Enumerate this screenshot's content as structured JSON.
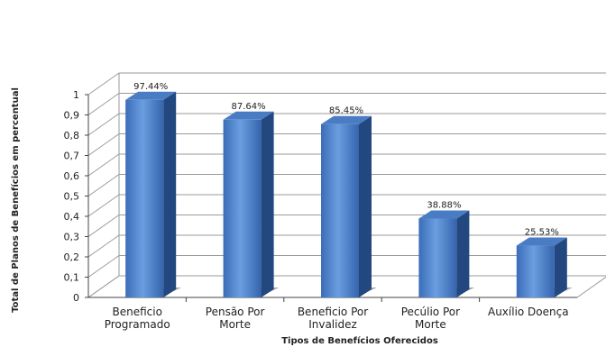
{
  "chart_data": {
    "type": "bar",
    "categories": [
      [
        "Beneficio",
        "Programado"
      ],
      [
        "Pensão Por",
        "Morte"
      ],
      [
        "Beneficio Por",
        "Invalidez"
      ],
      [
        "Pecúlio Por",
        "Morte"
      ],
      [
        "Auxílio Doença"
      ]
    ],
    "values": [
      0.9744,
      0.8764,
      0.8545,
      0.3888,
      0.2553
    ],
    "data_labels": [
      "97.44%",
      "87.64%",
      "85.45%",
      "38.88%",
      "25.53%"
    ],
    "xlabel": "Tipos  de Benefícios  Oferecidos",
    "ylabel": "Total de Planos de Benefícios em percentual",
    "ylim": [
      0,
      1
    ],
    "yticks": [
      "0",
      "0,1",
      "0,2",
      "0,3",
      "0,4",
      "0,5",
      "0,6",
      "0,7",
      "0,8",
      "0,9",
      "1"
    ],
    "grid": true,
    "three_d": true,
    "colors": {
      "bar_front_top": "#5b8fd6",
      "bar_front_bottom": "#2f5ea8",
      "bar_side": "#22487f",
      "bar_top": "#4a7cc4",
      "grid": "#9a9a9a",
      "text": "#222222"
    }
  }
}
